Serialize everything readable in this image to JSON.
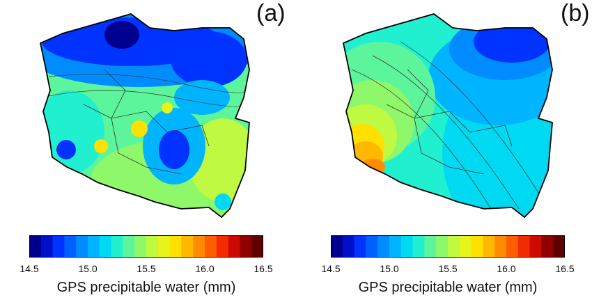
{
  "panels": [
    {
      "label": "(a)",
      "colorbar_label": "GPS precipitable water (mm)"
    },
    {
      "label": "(b)",
      "colorbar_label": "GPS precipitable water (mm)"
    }
  ],
  "colorbar": {
    "min": 14.5,
    "max": 16.5,
    "ticks": [
      "14.5",
      "15.0",
      "15.5",
      "16.0",
      "16.5"
    ],
    "colors": [
      "#00008f",
      "#0010c8",
      "#0033ff",
      "#0060ff",
      "#008cff",
      "#00b4ff",
      "#00d9f2",
      "#20f0d0",
      "#5cf59c",
      "#8ef86a",
      "#bff941",
      "#e6f41c",
      "#ffe100",
      "#ffb800",
      "#ff8c00",
      "#ff5e00",
      "#f22c00",
      "#cc0a00",
      "#8f0000",
      "#600000"
    ]
  }
}
